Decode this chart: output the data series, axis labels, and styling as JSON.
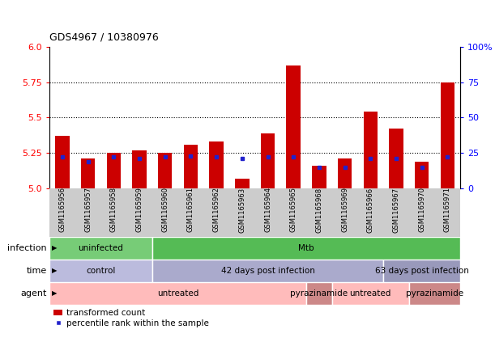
{
  "title": "GDS4967 / 10380976",
  "samples": [
    "GSM1165956",
    "GSM1165957",
    "GSM1165958",
    "GSM1165959",
    "GSM1165960",
    "GSM1165961",
    "GSM1165962",
    "GSM1165963",
    "GSM1165964",
    "GSM1165965",
    "GSM1165968",
    "GSM1165969",
    "GSM1165966",
    "GSM1165967",
    "GSM1165970",
    "GSM1165971"
  ],
  "red_values": [
    5.37,
    5.21,
    5.25,
    5.27,
    5.25,
    5.31,
    5.33,
    5.07,
    5.39,
    5.87,
    5.16,
    5.21,
    5.54,
    5.42,
    5.19,
    5.75
  ],
  "blue_values": [
    5.22,
    5.19,
    5.22,
    5.21,
    5.22,
    5.23,
    5.22,
    5.21,
    5.22,
    5.22,
    5.15,
    5.15,
    5.21,
    5.21,
    5.15,
    5.22
  ],
  "ymin": 5.0,
  "ymax": 6.0,
  "yticks_left": [
    5.0,
    5.25,
    5.5,
    5.75,
    6.0
  ],
  "yticks_right": [
    0,
    25,
    50,
    75,
    100
  ],
  "yticks_right_labels": [
    "0",
    "25",
    "50",
    "75",
    "100%"
  ],
  "hlines": [
    5.25,
    5.5,
    5.75
  ],
  "bar_color": "#cc0000",
  "blue_color": "#2222cc",
  "tick_bg_color": "#cccccc",
  "infection_groups": [
    {
      "label": "uninfected",
      "start": 0,
      "end": 4,
      "color": "#77cc77"
    },
    {
      "label": "Mtb",
      "start": 4,
      "end": 16,
      "color": "#55bb55"
    }
  ],
  "time_groups": [
    {
      "label": "control",
      "start": 0,
      "end": 4,
      "color": "#bbbbdd"
    },
    {
      "label": "42 days post infection",
      "start": 4,
      "end": 13,
      "color": "#aaaacc"
    },
    {
      "label": "63 days post infection",
      "start": 13,
      "end": 16,
      "color": "#9999bb"
    }
  ],
  "agent_groups": [
    {
      "label": "untreated",
      "start": 0,
      "end": 10,
      "color": "#ffbbbb"
    },
    {
      "label": "pyrazinamide",
      "start": 10,
      "end": 11,
      "color": "#cc8888"
    },
    {
      "label": "untreated",
      "start": 11,
      "end": 14,
      "color": "#ffbbbb"
    },
    {
      "label": "pyrazinamide",
      "start": 14,
      "end": 16,
      "color": "#cc8888"
    }
  ],
  "row_labels": [
    "infection",
    "time",
    "agent"
  ],
  "legend_red": "transformed count",
  "legend_blue": "percentile rank within the sample",
  "bar_width": 0.55,
  "title_fontsize": 9,
  "tick_fontsize": 6,
  "row_label_fontsize": 8,
  "group_label_fontsize": 7.5,
  "legend_fontsize": 7.5
}
